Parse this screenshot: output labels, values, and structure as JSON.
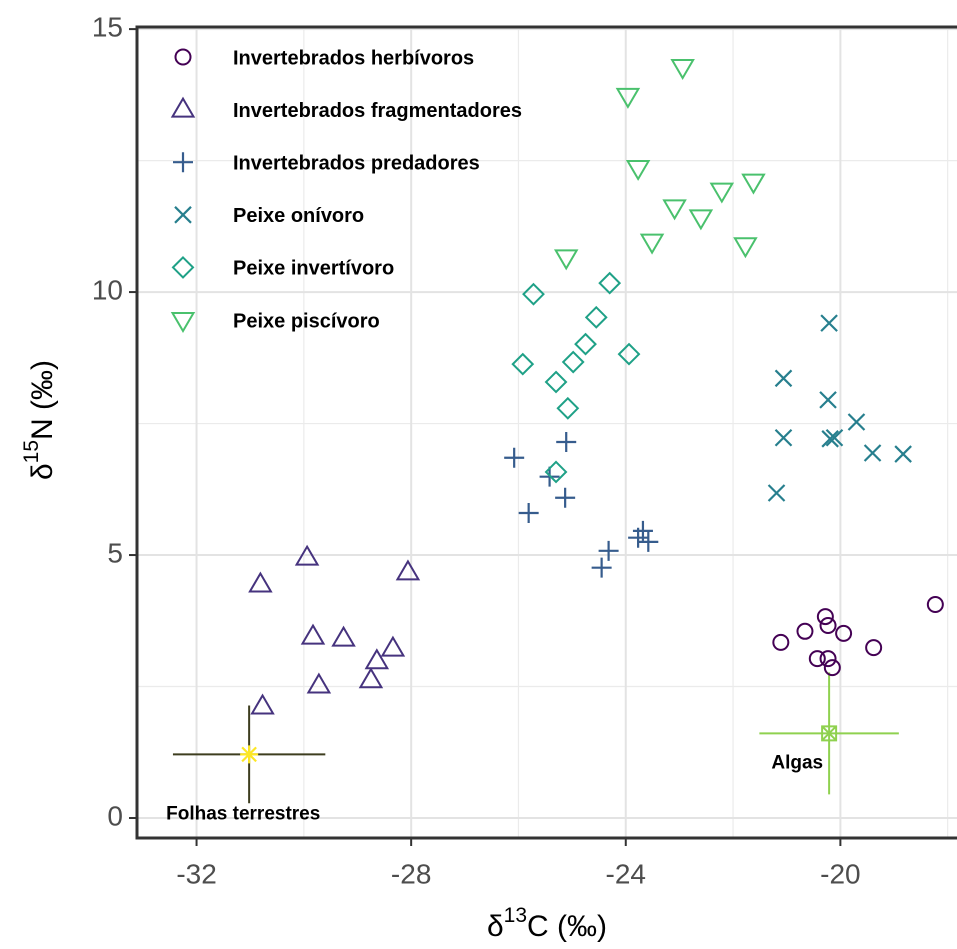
{
  "chart_data": {
    "type": "scatter",
    "x_label": {
      "prefix": "δ",
      "sup": "13",
      "suffix": "C (‰)"
    },
    "y_label": {
      "prefix": "δ",
      "sup": "15",
      "suffix": "N (‰)"
    },
    "xlim": [
      -33.11,
      -17.64
    ],
    "ylim": [
      -0.38,
      15.04
    ],
    "xticks": [
      -32,
      -28,
      -24,
      -20
    ],
    "yticks": [
      0,
      5,
      10,
      15
    ],
    "grid": true,
    "legend": "upper left",
    "series": [
      {
        "name": "Invertebrados herbívoros",
        "color": "#440154",
        "marker": "circle",
        "x": [
          -18.23,
          -21.11,
          -20.66,
          -20.28,
          -20.23,
          -19.94,
          -19.38,
          -20.43,
          -20.23,
          -20.15
        ],
        "y": [
          4.06,
          3.34,
          3.55,
          3.83,
          3.66,
          3.51,
          3.24,
          3.03,
          3.03,
          2.86
        ]
      },
      {
        "name": "Invertebrados fragmentadores",
        "color": "#46337e",
        "marker": "triangle",
        "x": [
          -30.81,
          -29.94,
          -28.06,
          -29.83,
          -29.26,
          -28.34,
          -28.64,
          -28.75,
          -29.72,
          -30.77
        ],
        "y": [
          4.44,
          4.95,
          4.67,
          3.45,
          3.41,
          3.22,
          2.98,
          2.62,
          2.52,
          2.12
        ]
      },
      {
        "name": "Invertebrados predadores",
        "color": "#365c8d",
        "marker": "plus",
        "x": [
          -26.08,
          -25.81,
          -25.42,
          -25.11,
          -25.13,
          -23.68,
          -23.77,
          -23.58,
          -24.32,
          -24.45
        ],
        "y": [
          6.85,
          5.8,
          6.49,
          7.15,
          6.09,
          5.46,
          5.33,
          5.25,
          5.08,
          4.76
        ]
      },
      {
        "name": "Peixe onívoro",
        "color": "#277f8e",
        "marker": "x",
        "x": [
          -20.21,
          -21.06,
          -20.23,
          -19.7,
          -21.06,
          -20.11,
          -20.19,
          -19.4,
          -18.83,
          -21.19
        ],
        "y": [
          9.41,
          8.36,
          7.95,
          7.53,
          7.23,
          7.23,
          7.21,
          6.94,
          6.92,
          6.18
        ]
      },
      {
        "name": "Peixe invertívoro",
        "color": "#1fa187",
        "marker": "diamond",
        "x": [
          -25.72,
          -24.3,
          -24.55,
          -24.75,
          -24.98,
          -23.94,
          -25.92,
          -25.3,
          -25.08,
          -25.3
        ],
        "y": [
          9.96,
          10.17,
          9.52,
          9.01,
          8.67,
          8.82,
          8.63,
          8.29,
          7.79,
          6.58
        ]
      },
      {
        "name": "Peixe piscívoro",
        "color": "#4ac16d",
        "marker": "triangle-down",
        "x": [
          -22.94,
          -23.96,
          -23.77,
          -23.09,
          -22.21,
          -21.62,
          -22.6,
          -23.51,
          -21.77,
          -25.11
        ],
        "y": [
          14.28,
          13.73,
          12.36,
          11.61,
          11.93,
          12.1,
          11.42,
          10.96,
          10.89,
          10.66
        ]
      }
    ],
    "references": [
      {
        "name": "Folhas terrestres",
        "x": -31.02,
        "y": 1.21,
        "xerr": 1.42,
        "yerr": 0.93,
        "color": "#3d3d1f",
        "marker_color": "#fde725",
        "marker": "asterisk"
      },
      {
        "name": "Algas",
        "x": -20.21,
        "y": 1.61,
        "xerr": 1.3,
        "yerr": 1.16,
        "color": "#8fd14f",
        "marker_color": "#8fd14f",
        "marker": "box-x"
      }
    ]
  }
}
